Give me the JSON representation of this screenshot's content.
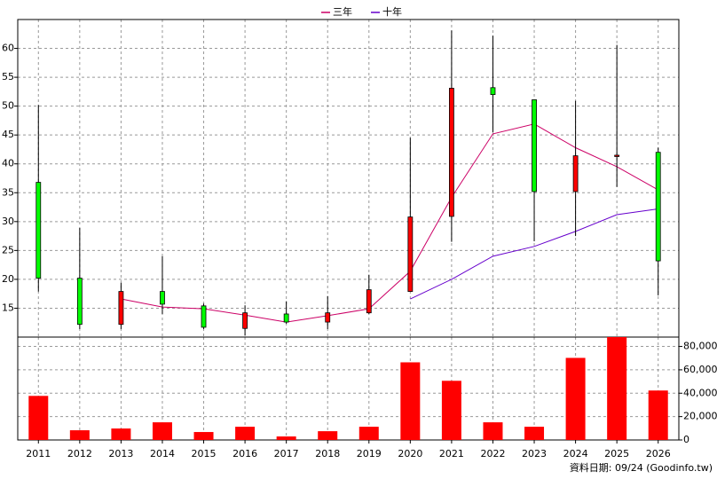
{
  "chart_data": [
    {
      "type": "candlestick",
      "categories": [
        "2011",
        "2012",
        "2013",
        "2014",
        "2015",
        "2016",
        "2017",
        "2018",
        "2019",
        "2020",
        "2021",
        "2022",
        "2023",
        "2024",
        "2025",
        "2026"
      ],
      "open": [
        36.8,
        20.2,
        12.2,
        17.9,
        15.4,
        11.5,
        14.0,
        12.6,
        14.2,
        17.9,
        30.9,
        53.2,
        51.1,
        35.2,
        41.5,
        42.0
      ],
      "high": [
        50.2,
        28.9,
        19.4,
        24.0,
        15.8,
        15.5,
        16.2,
        17.1,
        20.8,
        44.5,
        63.1,
        62.2,
        51.1,
        50.9,
        60.6,
        42.8
      ],
      "low": [
        17.9,
        11.4,
        11.4,
        14.0,
        11.4,
        10.3,
        12.3,
        11.4,
        14.0,
        17.9,
        26.5,
        45.5,
        26.6,
        27.5,
        36.0,
        17.2
      ],
      "close": [
        20.2,
        12.2,
        17.9,
        15.7,
        11.7,
        14.2,
        12.6,
        14.2,
        18.2,
        30.8,
        53.1,
        52.0,
        35.2,
        41.4,
        41.5,
        23.2
      ],
      "up_color": "#ff0000",
      "down_color": "#00ff00",
      "series": [
        {
          "name": "三年",
          "color": "#cc0066",
          "values": [
            null,
            null,
            16.6,
            15.2,
            14.9,
            13.8,
            12.6,
            13.7,
            14.9,
            21.4,
            34.2,
            45.2,
            46.9,
            42.8,
            39.5,
            35.5
          ]
        },
        {
          "name": "十年",
          "color": "#6600cc",
          "values": [
            null,
            null,
            null,
            null,
            null,
            null,
            null,
            null,
            null,
            16.6,
            20.0,
            24.0,
            25.7,
            28.3,
            31.2,
            32.2
          ]
        }
      ],
      "ylim": [
        10,
        65
      ],
      "yticks": [
        15,
        20,
        25,
        30,
        35,
        40,
        45,
        50,
        55,
        60
      ],
      "grid": true
    },
    {
      "type": "bar",
      "categories": [
        "2011",
        "2012",
        "2013",
        "2014",
        "2015",
        "2016",
        "2017",
        "2018",
        "2019",
        "2020",
        "2021",
        "2022",
        "2023",
        "2024",
        "2025",
        "2026"
      ],
      "values": [
        37700,
        8300,
        9800,
        15100,
        6800,
        11300,
        3000,
        7500,
        11300,
        66400,
        50600,
        15100,
        11300,
        70200,
        88000,
        42300
      ],
      "color": "#ff0000",
      "ylim": [
        0,
        88000
      ],
      "yticks": [
        0,
        {
          "value": 20000,
          "label": "20,000"
        },
        {
          "value": 40000,
          "label": "40,000"
        },
        {
          "value": 60000,
          "label": "60,000"
        },
        {
          "value": 80000,
          "label": "80,000"
        }
      ],
      "grid": true
    }
  ],
  "note": "資料日期: 09/24  (Goodinfo.tw)"
}
